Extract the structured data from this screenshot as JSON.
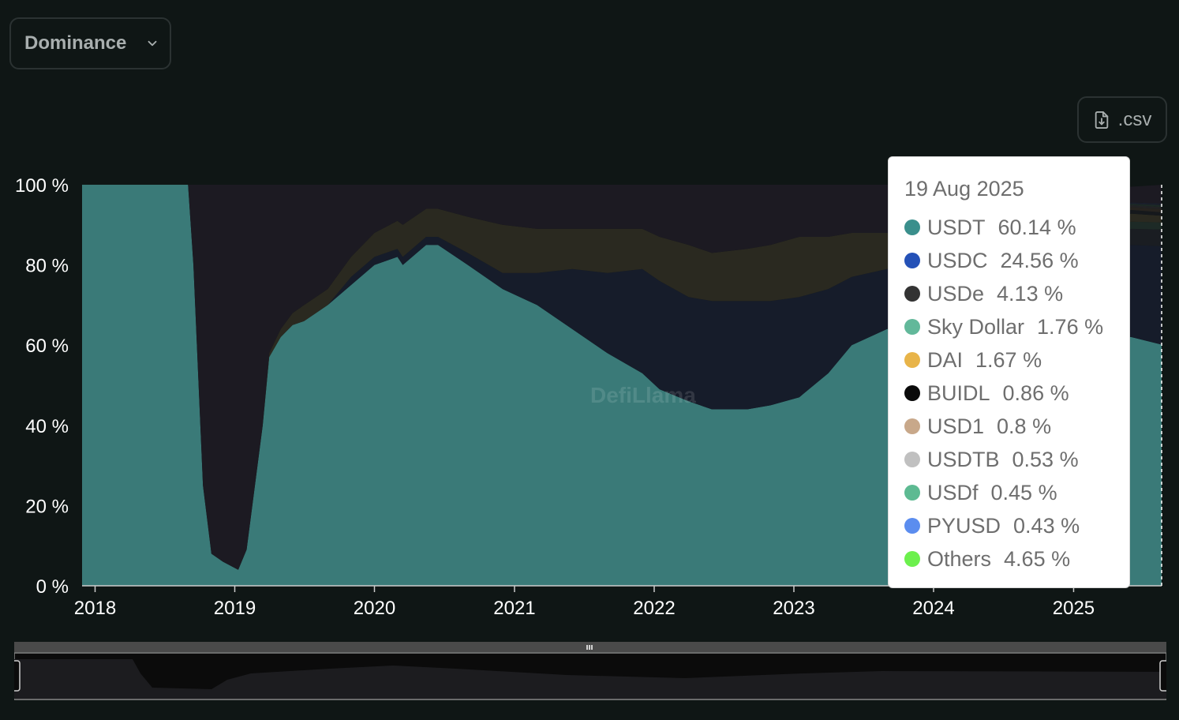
{
  "controls": {
    "view_select": {
      "selected": "Dominance",
      "icon": "chevron-down-icon"
    },
    "csv_button": {
      "label": ".csv",
      "icon": "file-download-icon"
    }
  },
  "chart_data": {
    "type": "area",
    "stacked": true,
    "normalized": true,
    "title": "",
    "xlabel": "",
    "ylabel": "",
    "ylim": [
      0,
      100
    ],
    "y_ticks": [
      "0 %",
      "20 %",
      "40 %",
      "60 %",
      "80 %",
      "100 %"
    ],
    "x_ticks": [
      "2018",
      "2019",
      "2020",
      "2021",
      "2022",
      "2023",
      "2024",
      "2025"
    ],
    "grid": false,
    "legend": "tooltip",
    "watermark": "DefiLlama",
    "x": [
      "2017-11-28",
      "2018-09-01",
      "2018-09-15",
      "2018-10-10",
      "2018-11-01",
      "2018-12-01",
      "2019-01-10",
      "2019-02-01",
      "2019-03-15",
      "2019-04-01",
      "2019-05-01",
      "2019-06-01",
      "2019-07-01",
      "2019-09-01",
      "2019-11-01",
      "2020-01-01",
      "2020-03-01",
      "2020-03-15",
      "2020-05-15",
      "2020-06-15",
      "2020-09-01",
      "2020-12-01",
      "2021-03-01",
      "2021-06-01",
      "2021-09-01",
      "2021-12-01",
      "2022-01-15",
      "2022-04-01",
      "2022-06-01",
      "2022-09-01",
      "2022-11-01",
      "2023-01-15",
      "2023-04-01",
      "2023-06-01",
      "2023-09-01",
      "2023-12-01",
      "2024-03-01",
      "2024-06-01",
      "2024-09-01",
      "2024-12-01",
      "2025-03-01",
      "2025-06-01",
      "2025-08-19"
    ],
    "series": [
      {
        "name": "USDT",
        "color": "#3a7a78",
        "values": [
          100,
          100,
          80,
          25,
          8,
          6,
          4,
          9,
          40,
          57,
          62,
          65,
          66,
          70,
          75,
          80,
          82,
          80,
          85,
          85,
          80,
          74,
          70,
          64,
          58,
          53,
          49,
          46,
          44,
          44,
          45,
          47,
          53,
          60,
          64,
          66,
          69,
          69,
          67,
          66,
          63,
          62,
          60.14
        ]
      },
      {
        "name": "USDC",
        "color": "#1e40af",
        "values": [
          0,
          0,
          0,
          0,
          0,
          0,
          0,
          0,
          0,
          0,
          0,
          0,
          0,
          0,
          2,
          2,
          2,
          2,
          2,
          2,
          3,
          4,
          8,
          15,
          20,
          26,
          27,
          26,
          27,
          27,
          26,
          25,
          21,
          17,
          15,
          14,
          13,
          12,
          15,
          17,
          20,
          23,
          24.56
        ]
      },
      {
        "name": "USDe",
        "color": "#333333",
        "values": [
          0,
          0,
          0,
          0,
          0,
          0,
          0,
          0,
          0,
          0,
          0,
          0,
          0,
          0,
          0,
          0,
          0,
          0,
          0,
          0,
          0,
          0,
          0,
          0,
          0,
          0,
          0,
          0,
          0,
          0,
          0,
          0,
          0,
          0,
          0,
          1,
          2,
          4,
          4,
          4,
          4,
          4,
          4.13
        ]
      },
      {
        "name": "Sky Dollar",
        "color": "#62b89a",
        "values": [
          0,
          0,
          0,
          0,
          0,
          0,
          0,
          0,
          0,
          0,
          0,
          0,
          0,
          0,
          0,
          0,
          0,
          0,
          0,
          0,
          0,
          0,
          0,
          0,
          0,
          0,
          0,
          0,
          0,
          0,
          0,
          0,
          0,
          0,
          0,
          0,
          0,
          0,
          1,
          1.5,
          1.7,
          1.8,
          1.76
        ]
      },
      {
        "name": "DAI",
        "color": "#e8b449",
        "values": [
          0,
          0,
          0,
          0,
          0,
          0,
          0,
          0,
          0,
          1,
          2,
          3,
          4,
          4,
          5,
          6,
          7,
          8,
          7,
          7,
          9,
          12,
          11,
          10,
          11,
          10,
          11,
          13,
          12,
          13,
          14,
          15,
          13,
          11,
          9,
          7,
          6,
          5,
          4,
          3,
          2.5,
          2,
          1.67
        ]
      },
      {
        "name": "BUIDL",
        "color": "#0a0a0a",
        "values": [
          0,
          0,
          0,
          0,
          0,
          0,
          0,
          0,
          0,
          0,
          0,
          0,
          0,
          0,
          0,
          0,
          0,
          0,
          0,
          0,
          0,
          0,
          0,
          0,
          0,
          0,
          0,
          0,
          0,
          0,
          0,
          0,
          0,
          0,
          0,
          0,
          0,
          0.5,
          0.7,
          0.8,
          0.9,
          0.9,
          0.86
        ]
      },
      {
        "name": "USD1",
        "color": "#c8a88a",
        "values": [
          0,
          0,
          0,
          0,
          0,
          0,
          0,
          0,
          0,
          0,
          0,
          0,
          0,
          0,
          0,
          0,
          0,
          0,
          0,
          0,
          0,
          0,
          0,
          0,
          0,
          0,
          0,
          0,
          0,
          0,
          0,
          0,
          0,
          0,
          0,
          0,
          0,
          0,
          0,
          0,
          0,
          0.7,
          0.8
        ]
      },
      {
        "name": "USDTB",
        "color": "#c0c0c0",
        "values": [
          0,
          0,
          0,
          0,
          0,
          0,
          0,
          0,
          0,
          0,
          0,
          0,
          0,
          0,
          0,
          0,
          0,
          0,
          0,
          0,
          0,
          0,
          0,
          0,
          0,
          0,
          0,
          0,
          0,
          0,
          0,
          0,
          0,
          0,
          0,
          0,
          0,
          0,
          0,
          0,
          0.3,
          0.5,
          0.53
        ]
      },
      {
        "name": "USDf",
        "color": "#5dba92",
        "values": [
          0,
          0,
          0,
          0,
          0,
          0,
          0,
          0,
          0,
          0,
          0,
          0,
          0,
          0,
          0,
          0,
          0,
          0,
          0,
          0,
          0,
          0,
          0,
          0,
          0,
          0,
          0,
          0,
          0,
          0,
          0,
          0,
          0,
          0,
          0,
          0,
          0,
          0,
          0,
          0,
          0,
          0.3,
          0.45
        ]
      },
      {
        "name": "PYUSD",
        "color": "#5b8def",
        "values": [
          0,
          0,
          0,
          0,
          0,
          0,
          0,
          0,
          0,
          0,
          0,
          0,
          0,
          0,
          0,
          0,
          0,
          0,
          0,
          0,
          0,
          0,
          0,
          0,
          0,
          0,
          0,
          0,
          0,
          0,
          0,
          0,
          0,
          0,
          0,
          0.2,
          0.3,
          0.5,
          0.6,
          0.5,
          0.5,
          0.4,
          0.43
        ]
      },
      {
        "name": "Others",
        "color": "#6cf04d",
        "values": [
          0,
          0,
          20,
          75,
          92,
          94,
          96,
          91,
          60,
          42,
          36,
          32,
          30,
          26,
          18,
          12,
          9,
          10,
          6,
          6,
          8,
          10,
          11,
          11,
          11,
          11,
          13,
          15,
          17,
          16,
          15,
          13,
          13,
          12,
          12,
          11.8,
          9.7,
          8.5,
          7.3,
          6.7,
          6.6,
          3.9,
          4.65
        ]
      }
    ],
    "tooltip": {
      "date": "19 Aug 2025",
      "entries": [
        {
          "name": "USDT",
          "value": "60.14 %",
          "color": "#3a8f8c"
        },
        {
          "name": "USDC",
          "value": "24.56 %",
          "color": "#2451b7"
        },
        {
          "name": "USDe",
          "value": "4.13 %",
          "color": "#333333"
        },
        {
          "name": "Sky Dollar",
          "value": "1.76 %",
          "color": "#62b89a"
        },
        {
          "name": "DAI",
          "value": "1.67 %",
          "color": "#e8b449"
        },
        {
          "name": "BUIDL",
          "value": "0.86 %",
          "color": "#0a0a0a"
        },
        {
          "name": "USD1",
          "value": "0.8 %",
          "color": "#c8a88a"
        },
        {
          "name": "USDTB",
          "value": "0.53 %",
          "color": "#c0c0c0"
        },
        {
          "name": "USDf",
          "value": "0.45 %",
          "color": "#5dba92"
        },
        {
          "name": "PYUSD",
          "value": "0.43 %",
          "color": "#5b8def"
        },
        {
          "name": "Others",
          "value": "4.65 %",
          "color": "#6cf04d"
        }
      ]
    }
  }
}
